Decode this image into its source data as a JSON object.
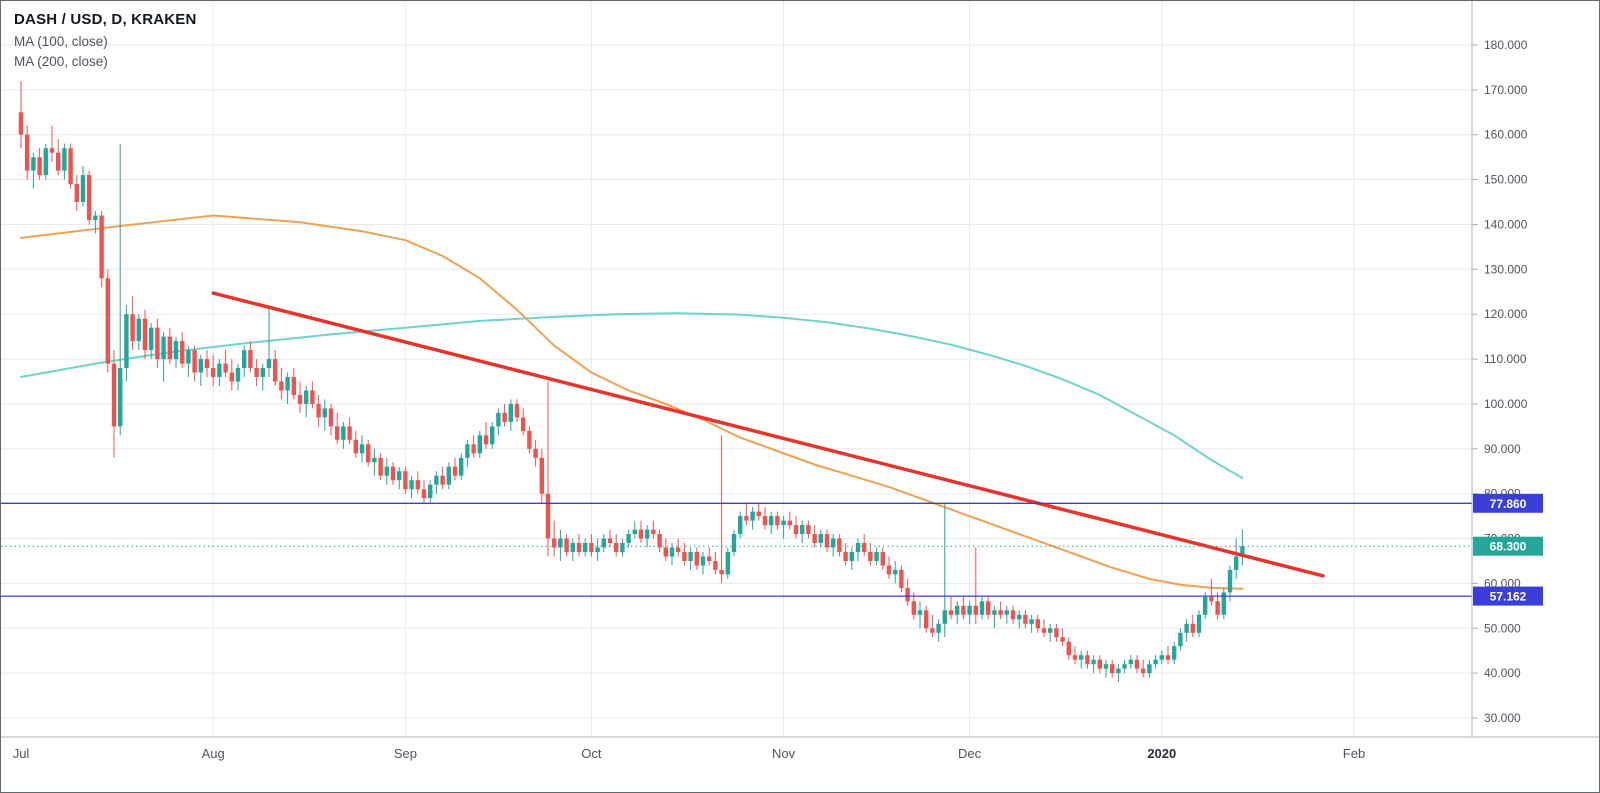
{
  "legend": {
    "title": "DASH / USD, D, KRAKEN",
    "ma100": "MA (100, close)",
    "ma200": "MA (200, close)"
  },
  "chart_data": {
    "type": "candlestick",
    "title": "DASH / USD, D, KRAKEN",
    "symbol": "DASH / USD",
    "interval": "D",
    "exchange": "KRAKEN",
    "last_price": 68.3,
    "y_axis": {
      "ticks": [
        180,
        170,
        160,
        150,
        140,
        130,
        120,
        110,
        100,
        90,
        80,
        70,
        60,
        50,
        40,
        30
      ],
      "tick_format": "0.000",
      "ylim": [
        25.5,
        189.8
      ],
      "grid": true
    },
    "x_axis": {
      "labels": [
        {
          "text": "Jul",
          "day": 0,
          "bold": false
        },
        {
          "text": "Aug",
          "day": 31,
          "bold": false
        },
        {
          "text": "Sep",
          "day": 62,
          "bold": false
        },
        {
          "text": "Oct",
          "day": 92,
          "bold": false
        },
        {
          "text": "Nov",
          "day": 123,
          "bold": false
        },
        {
          "text": "Dec",
          "day": 153,
          "bold": false
        },
        {
          "text": "2020",
          "day": 184,
          "bold": true
        },
        {
          "text": "Feb",
          "day": 215,
          "bold": false
        }
      ],
      "gridline_days": [
        31,
        62,
        92,
        123,
        153,
        184,
        215
      ]
    },
    "candles": [
      [
        165,
        172,
        157,
        160
      ],
      [
        160,
        162,
        150,
        152
      ],
      [
        152,
        156,
        148,
        155
      ],
      [
        155,
        157,
        150,
        151
      ],
      [
        151,
        158,
        150,
        157
      ],
      [
        157,
        162,
        154,
        156
      ],
      [
        156,
        159,
        151,
        152
      ],
      [
        152,
        158,
        150,
        157
      ],
      [
        157,
        158,
        148,
        149
      ],
      [
        149,
        151,
        143,
        145
      ],
      [
        145,
        153,
        144,
        151
      ],
      [
        151,
        152,
        140,
        141
      ],
      [
        141,
        143,
        138,
        142
      ],
      [
        142,
        143,
        126,
        128
      ],
      [
        128,
        130,
        107,
        109
      ],
      [
        109,
        112,
        88,
        95
      ],
      [
        95,
        158,
        93,
        108
      ],
      [
        108,
        122,
        105,
        120
      ],
      [
        120,
        124,
        112,
        114
      ],
      [
        114,
        120,
        112,
        119
      ],
      [
        119,
        121,
        110,
        112
      ],
      [
        112,
        118,
        110,
        117
      ],
      [
        117,
        119,
        108,
        110
      ],
      [
        110,
        116,
        105,
        115
      ],
      [
        115,
        117,
        109,
        110
      ],
      [
        110,
        115,
        108,
        114
      ],
      [
        114,
        116,
        108,
        109
      ],
      [
        109,
        113,
        106,
        112
      ],
      [
        112,
        113,
        105,
        107
      ],
      [
        107,
        111,
        104,
        110
      ],
      [
        110,
        112,
        106,
        108
      ],
      [
        108,
        111,
        104,
        106
      ],
      [
        106,
        110,
        104,
        109
      ],
      [
        109,
        112,
        106,
        107
      ],
      [
        107,
        110,
        103,
        105
      ],
      [
        105,
        109,
        103,
        108
      ],
      [
        108,
        113,
        106,
        112
      ],
      [
        112,
        114,
        107,
        108
      ],
      [
        108,
        110,
        104,
        106
      ],
      [
        106,
        109,
        103,
        108
      ],
      [
        108,
        122,
        106,
        110
      ],
      [
        110,
        112,
        104,
        105
      ],
      [
        105,
        108,
        101,
        103
      ],
      [
        103,
        107,
        100,
        106
      ],
      [
        106,
        108,
        101,
        102
      ],
      [
        102,
        105,
        98,
        100
      ],
      [
        100,
        104,
        97,
        103
      ],
      [
        103,
        105,
        99,
        100
      ],
      [
        100,
        102,
        95,
        97
      ],
      [
        97,
        101,
        94,
        99
      ],
      [
        99,
        100,
        93,
        95
      ],
      [
        95,
        98,
        91,
        92
      ],
      [
        92,
        96,
        90,
        95
      ],
      [
        95,
        97,
        91,
        92
      ],
      [
        92,
        94,
        88,
        89
      ],
      [
        89,
        93,
        87,
        91
      ],
      [
        91,
        92,
        86,
        87
      ],
      [
        87,
        90,
        84,
        88
      ],
      [
        88,
        89,
        83,
        84
      ],
      [
        84,
        88,
        82,
        86
      ],
      [
        86,
        87,
        82,
        83
      ],
      [
        83,
        86,
        81,
        85
      ],
      [
        85,
        86,
        80,
        81
      ],
      [
        81,
        84,
        79,
        83
      ],
      [
        83,
        85,
        80,
        81
      ],
      [
        81,
        83,
        78,
        79
      ],
      [
        79,
        83,
        78,
        82
      ],
      [
        82,
        85,
        80,
        84
      ],
      [
        84,
        86,
        81,
        82
      ],
      [
        82,
        87,
        81,
        86
      ],
      [
        86,
        88,
        83,
        84
      ],
      [
        84,
        89,
        83,
        88
      ],
      [
        88,
        92,
        86,
        91
      ],
      [
        91,
        93,
        88,
        89
      ],
      [
        89,
        94,
        88,
        93
      ],
      [
        93,
        96,
        90,
        91
      ],
      [
        91,
        96,
        90,
        95
      ],
      [
        95,
        99,
        93,
        98
      ],
      [
        98,
        100,
        95,
        96
      ],
      [
        96,
        101,
        94,
        100
      ],
      [
        100,
        101,
        96,
        97
      ],
      [
        97,
        99,
        93,
        94
      ],
      [
        94,
        95,
        89,
        90
      ],
      [
        90,
        92,
        86,
        88
      ],
      [
        88,
        90,
        78,
        80
      ],
      [
        80,
        105,
        66,
        70
      ],
      [
        70,
        74,
        66,
        68
      ],
      [
        68,
        72,
        65,
        70
      ],
      [
        70,
        71,
        66,
        67
      ],
      [
        67,
        70,
        65,
        69
      ],
      [
        69,
        71,
        66,
        67
      ],
      [
        67,
        70,
        66,
        69
      ],
      [
        69,
        71,
        66,
        67
      ],
      [
        67,
        70,
        65,
        68
      ],
      [
        68,
        71,
        67,
        70
      ],
      [
        70,
        72,
        68,
        69
      ],
      [
        69,
        71,
        66,
        67
      ],
      [
        67,
        70,
        66,
        69
      ],
      [
        69,
        72,
        68,
        71
      ],
      [
        71,
        74,
        70,
        72
      ],
      [
        72,
        74,
        69,
        70
      ],
      [
        70,
        73,
        68,
        72
      ],
      [
        72,
        74,
        70,
        71
      ],
      [
        71,
        72,
        67,
        68
      ],
      [
        68,
        70,
        65,
        66
      ],
      [
        66,
        69,
        64,
        68
      ],
      [
        68,
        70,
        66,
        67
      ],
      [
        67,
        69,
        64,
        65
      ],
      [
        65,
        68,
        63,
        67
      ],
      [
        67,
        68,
        63,
        64
      ],
      [
        64,
        67,
        62,
        66
      ],
      [
        66,
        68,
        64,
        65
      ],
      [
        65,
        67,
        62,
        63
      ],
      [
        63,
        93,
        60,
        62
      ],
      [
        62,
        68,
        61,
        67
      ],
      [
        67,
        72,
        66,
        71
      ],
      [
        71,
        76,
        70,
        75
      ],
      [
        75,
        78,
        73,
        74
      ],
      [
        74,
        77,
        72,
        76
      ],
      [
        76,
        78,
        74,
        75
      ],
      [
        75,
        77,
        72,
        73
      ],
      [
        73,
        76,
        71,
        75
      ],
      [
        75,
        76,
        72,
        73
      ],
      [
        73,
        75,
        70,
        74
      ],
      [
        74,
        76,
        72,
        73
      ],
      [
        73,
        75,
        70,
        71
      ],
      [
        71,
        74,
        69,
        73
      ],
      [
        73,
        74,
        70,
        71
      ],
      [
        71,
        73,
        68,
        69
      ],
      [
        69,
        72,
        68,
        71
      ],
      [
        71,
        72,
        67,
        68
      ],
      [
        68,
        71,
        66,
        70
      ],
      [
        70,
        71,
        66,
        67
      ],
      [
        67,
        69,
        64,
        65
      ],
      [
        65,
        68,
        63,
        67
      ],
      [
        67,
        70,
        65,
        69
      ],
      [
        69,
        71,
        66,
        67
      ],
      [
        67,
        69,
        64,
        65
      ],
      [
        65,
        68,
        64,
        67
      ],
      [
        67,
        68,
        63,
        64
      ],
      [
        64,
        66,
        61,
        62
      ],
      [
        62,
        65,
        60,
        63
      ],
      [
        63,
        64,
        58,
        59
      ],
      [
        59,
        61,
        55,
        56
      ],
      [
        56,
        58,
        52,
        53
      ],
      [
        53,
        56,
        50,
        54
      ],
      [
        54,
        55,
        49,
        50
      ],
      [
        50,
        53,
        48,
        49
      ],
      [
        49,
        52,
        47,
        51
      ],
      [
        51,
        78,
        48,
        54
      ],
      [
        54,
        57,
        52,
        53
      ],
      [
        53,
        56,
        51,
        55
      ],
      [
        55,
        57,
        52,
        53
      ],
      [
        53,
        56,
        51,
        55
      ],
      [
        55,
        68,
        51,
        53
      ],
      [
        53,
        57,
        52,
        56
      ],
      [
        56,
        57,
        52,
        53
      ],
      [
        53,
        55,
        50,
        54
      ],
      [
        54,
        56,
        52,
        53
      ],
      [
        53,
        55,
        51,
        54
      ],
      [
        54,
        55,
        51,
        52
      ],
      [
        52,
        54,
        50,
        53
      ],
      [
        53,
        54,
        50,
        51
      ],
      [
        51,
        53,
        49,
        52
      ],
      [
        52,
        53,
        49,
        50
      ],
      [
        50,
        52,
        48,
        49
      ],
      [
        49,
        51,
        47,
        50
      ],
      [
        50,
        51,
        47,
        48
      ],
      [
        48,
        50,
        46,
        47
      ],
      [
        47,
        48,
        43,
        44
      ],
      [
        44,
        46,
        42,
        43
      ],
      [
        43,
        45,
        41,
        44
      ],
      [
        44,
        45,
        41,
        42
      ],
      [
        42,
        44,
        40,
        43
      ],
      [
        43,
        44,
        40,
        41
      ],
      [
        41,
        43,
        39,
        42
      ],
      [
        42,
        43,
        39,
        40
      ],
      [
        40,
        42,
        38,
        41
      ],
      [
        41,
        43,
        40,
        42
      ],
      [
        42,
        44,
        41,
        43
      ],
      [
        43,
        44,
        40,
        41
      ],
      [
        41,
        43,
        39,
        40
      ],
      [
        40,
        43,
        39,
        42
      ],
      [
        42,
        44,
        41,
        43
      ],
      [
        43,
        45,
        42,
        44
      ],
      [
        44,
        46,
        42,
        43
      ],
      [
        43,
        47,
        42,
        46
      ],
      [
        46,
        50,
        45,
        49
      ],
      [
        49,
        52,
        47,
        51
      ],
      [
        51,
        53,
        48,
        49
      ],
      [
        49,
        54,
        48,
        53
      ],
      [
        53,
        58,
        52,
        57
      ],
      [
        57,
        61,
        55,
        56
      ],
      [
        56,
        58,
        52,
        53
      ],
      [
        53,
        59,
        52,
        58
      ],
      [
        58,
        64,
        56,
        63
      ],
      [
        63,
        70,
        61,
        66
      ],
      [
        66,
        72,
        64,
        68.3
      ]
    ],
    "overlays": {
      "ma100": {
        "name": "MA (100, close)",
        "color": "#f2a154",
        "points": [
          [
            0,
            137
          ],
          [
            15,
            139.5
          ],
          [
            31,
            142
          ],
          [
            45,
            140.5
          ],
          [
            55,
            138.5
          ],
          [
            62,
            136.5
          ],
          [
            68,
            133
          ],
          [
            74,
            128
          ],
          [
            80,
            121
          ],
          [
            86,
            113
          ],
          [
            92,
            107
          ],
          [
            98,
            103
          ],
          [
            104,
            100
          ],
          [
            110,
            96.5
          ],
          [
            116,
            92.5
          ],
          [
            122,
            89.5
          ],
          [
            128,
            86.5
          ],
          [
            134,
            84
          ],
          [
            140,
            81.5
          ],
          [
            146,
            78.5
          ],
          [
            152,
            75.5
          ],
          [
            158,
            72.5
          ],
          [
            164,
            69.5
          ],
          [
            170,
            66.5
          ],
          [
            176,
            63.5
          ],
          [
            182,
            61
          ],
          [
            187,
            59.7
          ],
          [
            192,
            59
          ],
          [
            197,
            58.8
          ]
        ]
      },
      "ma200": {
        "name": "MA (200, close)",
        "color": "#6fd4cd",
        "points": [
          [
            0,
            106
          ],
          [
            12,
            109
          ],
          [
            24,
            111.5
          ],
          [
            36,
            113.5
          ],
          [
            50,
            115.5
          ],
          [
            62,
            117
          ],
          [
            74,
            118.5
          ],
          [
            86,
            119.4
          ],
          [
            96,
            120
          ],
          [
            106,
            120.2
          ],
          [
            116,
            119.9
          ],
          [
            123,
            119.2
          ],
          [
            130,
            118.2
          ],
          [
            137,
            116.8
          ],
          [
            144,
            115
          ],
          [
            150,
            113.2
          ],
          [
            156,
            111
          ],
          [
            162,
            108.5
          ],
          [
            168,
            105.5
          ],
          [
            174,
            102
          ],
          [
            180,
            97.5
          ],
          [
            186,
            93
          ],
          [
            192,
            87.5
          ],
          [
            197,
            83.5
          ]
        ]
      },
      "trendline": {
        "color": "#e8332c",
        "from_day": 31,
        "from_price": 124.7,
        "to_day": 210,
        "to_price": 61.7
      }
    },
    "levels": [
      {
        "value": 77.86,
        "label": "77.860",
        "color": "#3b3fd8",
        "style": "solid",
        "name": "upper-level"
      },
      {
        "value": 68.3,
        "label": "68.300",
        "color": "#26a69a",
        "style": "dotted",
        "name": "last-price"
      },
      {
        "value": 57.162,
        "label": "57.162",
        "color": "#3b3fd8",
        "style": "solid",
        "name": "lower-level"
      }
    ],
    "colors": {
      "up": "#26a69a",
      "down": "#ef5350",
      "grid": "#e7eaf0",
      "axis_text": "#52555e",
      "axis_bold_text": "#2a2e39",
      "background": "#ffffff",
      "axis_line": "#b2b5be",
      "badge_text": "#ffffff"
    }
  }
}
